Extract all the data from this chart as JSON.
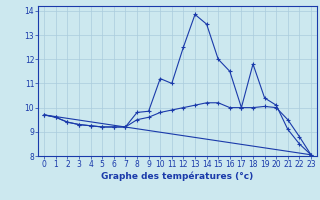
{
  "title": "",
  "xlabel": "Graphe des températures (°c)",
  "bg_color": "#cce8ef",
  "grid_color": "#aaccdd",
  "line_color": "#1a3aaa",
  "xlim": [
    -0.5,
    23.5
  ],
  "ylim": [
    8,
    14.2
  ],
  "yticks": [
    8,
    9,
    10,
    11,
    12,
    13,
    14
  ],
  "xticks": [
    0,
    1,
    2,
    3,
    4,
    5,
    6,
    7,
    8,
    9,
    10,
    11,
    12,
    13,
    14,
    15,
    16,
    17,
    18,
    19,
    20,
    21,
    22,
    23
  ],
  "line1_x": [
    0,
    1,
    2,
    3,
    4,
    5,
    6,
    7,
    8,
    9,
    10,
    11,
    12,
    13,
    14,
    15,
    16,
    17,
    18,
    19,
    20,
    21,
    22,
    23
  ],
  "line1_y": [
    9.7,
    9.6,
    9.4,
    9.3,
    9.25,
    9.2,
    9.2,
    9.2,
    9.8,
    9.85,
    11.2,
    11.0,
    12.5,
    13.85,
    13.45,
    12.0,
    11.5,
    10.0,
    11.8,
    10.4,
    10.1,
    9.1,
    8.5,
    8.05
  ],
  "line2_x": [
    0,
    1,
    2,
    3,
    4,
    5,
    6,
    7,
    8,
    9,
    10,
    11,
    12,
    13,
    14,
    15,
    16,
    17,
    18,
    19,
    20,
    21,
    22,
    23
  ],
  "line2_y": [
    9.7,
    9.6,
    9.4,
    9.3,
    9.25,
    9.2,
    9.2,
    9.2,
    9.5,
    9.6,
    9.8,
    9.9,
    10.0,
    10.1,
    10.2,
    10.2,
    10.0,
    10.0,
    10.0,
    10.05,
    10.0,
    9.5,
    8.8,
    8.05
  ],
  "line3_x": [
    0,
    23
  ],
  "line3_y": [
    9.7,
    8.05
  ],
  "tick_fontsize": 5.5,
  "xlabel_fontsize": 6.5
}
